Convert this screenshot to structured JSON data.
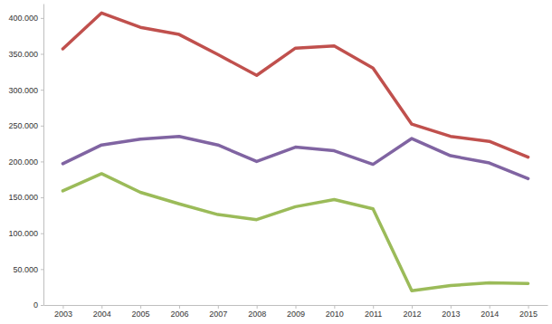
{
  "chart_data": {
    "type": "line",
    "categories": [
      "2003",
      "2004",
      "2005",
      "2006",
      "2007",
      "2008",
      "2009",
      "2010",
      "2011",
      "2012",
      "2013",
      "2014",
      "2015"
    ],
    "series": [
      {
        "color": "#c0504d",
        "values": [
          357000,
          407000,
          387000,
          377000,
          349000,
          320000,
          358000,
          361000,
          330000,
          252000,
          235000,
          228000,
          206000
        ]
      },
      {
        "color": "#8064a2",
        "values": [
          197000,
          223000,
          231000,
          235000,
          223000,
          200000,
          220000,
          215000,
          196000,
          232000,
          208000,
          198000,
          176000
        ]
      },
      {
        "color": "#9bbb59",
        "values": [
          159000,
          183000,
          157000,
          141000,
          126000,
          119000,
          137000,
          147000,
          134000,
          20000,
          27000,
          31000,
          30000
        ]
      }
    ],
    "ylim": [
      0,
      420000
    ],
    "yticks": [
      0,
      {
        "value": 50000,
        "label": "50.000"
      },
      {
        "value": 100000,
        "label": "100.000"
      },
      {
        "value": 150000,
        "label": "150.000"
      },
      {
        "value": 200000,
        "label": "200.000"
      },
      {
        "value": 250000,
        "label": "250.000"
      },
      {
        "value": 300000,
        "label": "300.000"
      },
      {
        "value": 350000,
        "label": "350.000"
      },
      {
        "value": 400000,
        "label": "400.000"
      }
    ],
    "grid": false
  }
}
